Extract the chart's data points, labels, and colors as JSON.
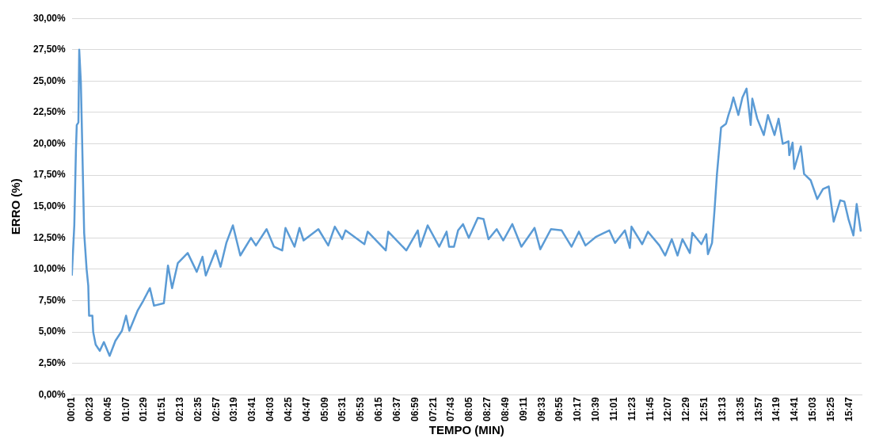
{
  "chart_data": {
    "type": "line",
    "xlabel": "TEMPO (MIN)",
    "ylabel": "ERRO (%)",
    "xlim": [
      1,
      962
    ],
    "xticks": [
      {
        "value": 1,
        "label": "00:01"
      },
      {
        "value": 23,
        "label": "00:23"
      },
      {
        "value": 45,
        "label": "00:45"
      },
      {
        "value": 67,
        "label": "01:07"
      },
      {
        "value": 89,
        "label": "01:29"
      },
      {
        "value": 111,
        "label": "01:51"
      },
      {
        "value": 133,
        "label": "02:13"
      },
      {
        "value": 155,
        "label": "02:35"
      },
      {
        "value": 177,
        "label": "02:57"
      },
      {
        "value": 199,
        "label": "03:19"
      },
      {
        "value": 221,
        "label": "03:41"
      },
      {
        "value": 243,
        "label": "04:03"
      },
      {
        "value": 265,
        "label": "04:25"
      },
      {
        "value": 287,
        "label": "04:47"
      },
      {
        "value": 309,
        "label": "05:09"
      },
      {
        "value": 331,
        "label": "05:31"
      },
      {
        "value": 353,
        "label": "05:53"
      },
      {
        "value": 375,
        "label": "06:15"
      },
      {
        "value": 397,
        "label": "06:37"
      },
      {
        "value": 419,
        "label": "06:59"
      },
      {
        "value": 441,
        "label": "07:21"
      },
      {
        "value": 463,
        "label": "07:43"
      },
      {
        "value": 485,
        "label": "08:05"
      },
      {
        "value": 507,
        "label": "08:27"
      },
      {
        "value": 529,
        "label": "08:49"
      },
      {
        "value": 551,
        "label": "09:11"
      },
      {
        "value": 573,
        "label": "09:33"
      },
      {
        "value": 595,
        "label": "09:55"
      },
      {
        "value": 617,
        "label": "10:17"
      },
      {
        "value": 639,
        "label": "10:39"
      },
      {
        "value": 661,
        "label": "11:01"
      },
      {
        "value": 683,
        "label": "11:23"
      },
      {
        "value": 705,
        "label": "11:45"
      },
      {
        "value": 727,
        "label": "12:07"
      },
      {
        "value": 749,
        "label": "12:29"
      },
      {
        "value": 771,
        "label": "12:51"
      },
      {
        "value": 793,
        "label": "13:13"
      },
      {
        "value": 815,
        "label": "13:35"
      },
      {
        "value": 837,
        "label": "13:57"
      },
      {
        "value": 859,
        "label": "14:19"
      },
      {
        "value": 881,
        "label": "14:41"
      },
      {
        "value": 903,
        "label": "15:03"
      },
      {
        "value": 925,
        "label": "15:25"
      },
      {
        "value": 947,
        "label": "15:47"
      }
    ],
    "ylim": [
      0,
      30
    ],
    "yticks": [
      {
        "value": 0,
        "label": "0,00%"
      },
      {
        "value": 2.5,
        "label": "2,50%"
      },
      {
        "value": 5,
        "label": "5,00%"
      },
      {
        "value": 7.5,
        "label": "7,50%"
      },
      {
        "value": 10,
        "label": "10,00%"
      },
      {
        "value": 12.5,
        "label": "12,50%"
      },
      {
        "value": 15,
        "label": "15,00%"
      },
      {
        "value": 17.5,
        "label": "17,50%"
      },
      {
        "value": 20,
        "label": "20,00%"
      },
      {
        "value": 22.5,
        "label": "22,50%"
      },
      {
        "value": 25,
        "label": "25,00%"
      },
      {
        "value": 27.5,
        "label": "27,50%"
      },
      {
        "value": 30,
        "label": "30,00%"
      }
    ],
    "grid": "y",
    "legend": false,
    "marker": "none",
    "line_style": "solid",
    "series": [
      {
        "color": "#5b9bd5",
        "x": [
          1,
          4,
          6,
          7,
          9,
          10,
          12,
          16,
          19,
          21,
          22,
          26,
          27,
          30,
          35,
          40,
          47,
          54,
          62,
          67,
          71,
          81,
          88,
          96,
          101,
          113,
          118,
          123,
          130,
          142,
          153,
          160,
          164,
          176,
          182,
          189,
          197,
          206,
          219,
          225,
          238,
          247,
          257,
          261,
          272,
          278,
          283,
          301,
          313,
          321,
          330,
          334,
          357,
          361,
          383,
          386,
          408,
          422,
          425,
          434,
          448,
          457,
          460,
          466,
          471,
          477,
          484,
          495,
          502,
          508,
          518,
          526,
          537,
          548,
          564,
          571,
          584,
          597,
          609,
          618,
          626,
          639,
          655,
          662,
          674,
          680,
          682,
          695,
          702,
          716,
          723,
          731,
          738,
          744,
          753,
          756,
          767,
          773,
          775,
          780,
          783,
          786,
          791,
          797,
          800,
          803,
          806,
          812,
          817,
          822,
          827,
          829,
          835,
          843,
          848,
          856,
          861,
          866,
          873,
          874,
          878,
          880,
          888,
          892,
          900,
          908,
          915,
          922,
          928,
          936,
          941,
          946,
          952,
          956,
          961
        ],
        "values": [
          9.5,
          13.5,
          19.5,
          21.5,
          21.7,
          27.5,
          24.9,
          12.9,
          10,
          8.7,
          6.3,
          6.3,
          5,
          4,
          3.5,
          4.2,
          3.1,
          4.3,
          5.1,
          6.3,
          5.1,
          6.7,
          7.5,
          8.5,
          7.1,
          7.3,
          10.3,
          8.5,
          10.5,
          11.3,
          9.8,
          11,
          9.5,
          11.5,
          10.2,
          12.1,
          13.5,
          11.1,
          12.5,
          11.9,
          13.2,
          11.8,
          11.5,
          13.3,
          11.8,
          13.3,
          12.3,
          13.2,
          11.9,
          13.4,
          12.4,
          13.1,
          12,
          13,
          11.5,
          13,
          11.5,
          13.1,
          11.8,
          13.5,
          11.8,
          13,
          11.8,
          11.8,
          13.1,
          13.6,
          12.5,
          14.1,
          14,
          12.4,
          13.2,
          12.3,
          13.6,
          11.8,
          13.3,
          11.6,
          13.2,
          13.1,
          11.8,
          13,
          11.9,
          12.6,
          13.1,
          12.1,
          13.1,
          11.7,
          13.4,
          12,
          13,
          11.9,
          11.1,
          12.4,
          11.1,
          12.4,
          11.3,
          12.9,
          12,
          12.8,
          11.2,
          12.1,
          14.7,
          17.6,
          21.3,
          21.6,
          22.3,
          22.9,
          23.7,
          22.3,
          23.7,
          24.4,
          21.5,
          23.6,
          22,
          20.7,
          22.3,
          20.7,
          22,
          20,
          20.2,
          19.1,
          20.1,
          18,
          19.8,
          17.6,
          17.1,
          15.6,
          16.4,
          16.6,
          13.8,
          15.5,
          15.4,
          14,
          12.7,
          15.2,
          13
        ]
      }
    ]
  }
}
